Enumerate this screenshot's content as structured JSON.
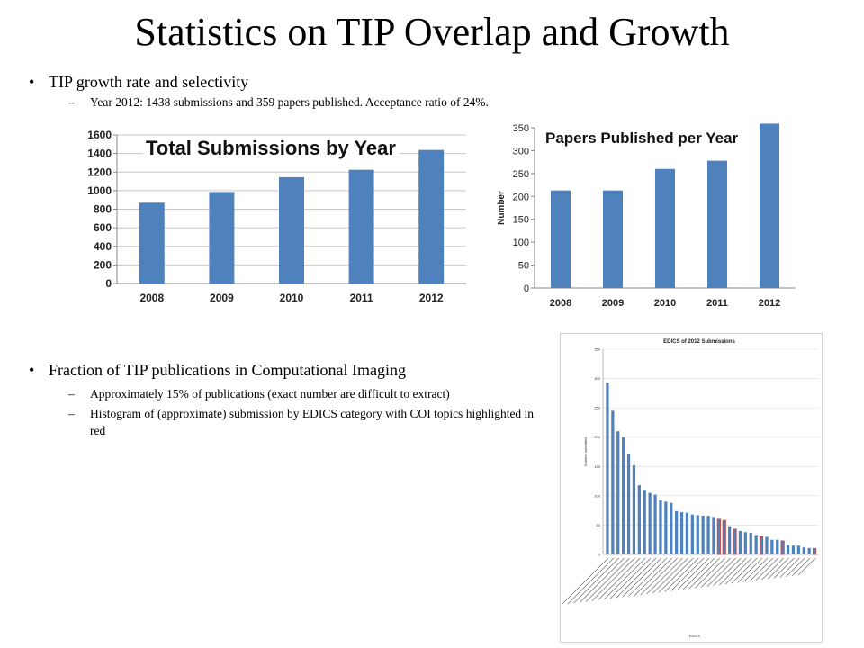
{
  "slide": {
    "title": "Statistics on TIP Overlap and Growth",
    "bullet1": "TIP growth rate and selectivity",
    "bullet1_sub1": "Year 2012: 1438 submissions and 359 papers published. Acceptance ratio of 24%.",
    "bullet2": "Fraction of TIP publications in Computational Imaging",
    "bullet2_sub1": "Approximately 15% of publications (exact number are difficult to extract)",
    "bullet2_sub2": "Histogram of (approximate) submission by EDICS category with COI topics highlighted in red",
    "bullet_glyph": "•",
    "dash_glyph": "–"
  },
  "chart_data": [
    {
      "type": "bar",
      "title": "Total Submissions by Year",
      "categories": [
        "2008",
        "2009",
        "2010",
        "2011",
        "2012"
      ],
      "values": [
        870,
        985,
        1145,
        1225,
        1438
      ],
      "ylim": [
        0,
        1600
      ],
      "yticks": [
        "0",
        "200",
        "400",
        "600",
        "800",
        "1000",
        "1200",
        "1400",
        "1600"
      ],
      "xlabel": "",
      "ylabel": "",
      "grid": true,
      "bar_color": "#4f81bd"
    },
    {
      "type": "bar",
      "title": "Papers Published per Year",
      "categories": [
        "2008",
        "2009",
        "2010",
        "2011",
        "2012"
      ],
      "values": [
        213,
        213,
        260,
        278,
        359
      ],
      "ylim": [
        0,
        350
      ],
      "yticks": [
        "0",
        "50",
        "100",
        "150",
        "200",
        "250",
        "300",
        "350"
      ],
      "xlabel": "",
      "ylabel": "Number",
      "grid": false,
      "bar_color": "#4f81bd"
    },
    {
      "type": "bar",
      "title": "EDICS of 2012 Submissions",
      "xlabel": "EDICS",
      "ylabel": "Number submitted",
      "ylim": [
        0,
        350
      ],
      "yticks": [
        "0",
        "50",
        "100",
        "150",
        "200",
        "250",
        "300",
        "350"
      ],
      "grid": true,
      "values": [
        293,
        245,
        210,
        200,
        172,
        152,
        118,
        110,
        105,
        102,
        92,
        90,
        88,
        74,
        72,
        71,
        68,
        67,
        66,
        66,
        64,
        60,
        58,
        48,
        43,
        40,
        38,
        37,
        33,
        30,
        30,
        25,
        25,
        23,
        16,
        15,
        15,
        12,
        11,
        10
      ],
      "highlighted": [
        false,
        false,
        false,
        false,
        false,
        false,
        false,
        false,
        false,
        false,
        false,
        false,
        false,
        false,
        false,
        false,
        false,
        false,
        false,
        false,
        false,
        true,
        true,
        false,
        true,
        false,
        false,
        false,
        false,
        true,
        false,
        false,
        false,
        true,
        false,
        false,
        false,
        false,
        false,
        true
      ],
      "bar_color": "#4f81bd",
      "highlight_color": "#c0504d"
    }
  ]
}
